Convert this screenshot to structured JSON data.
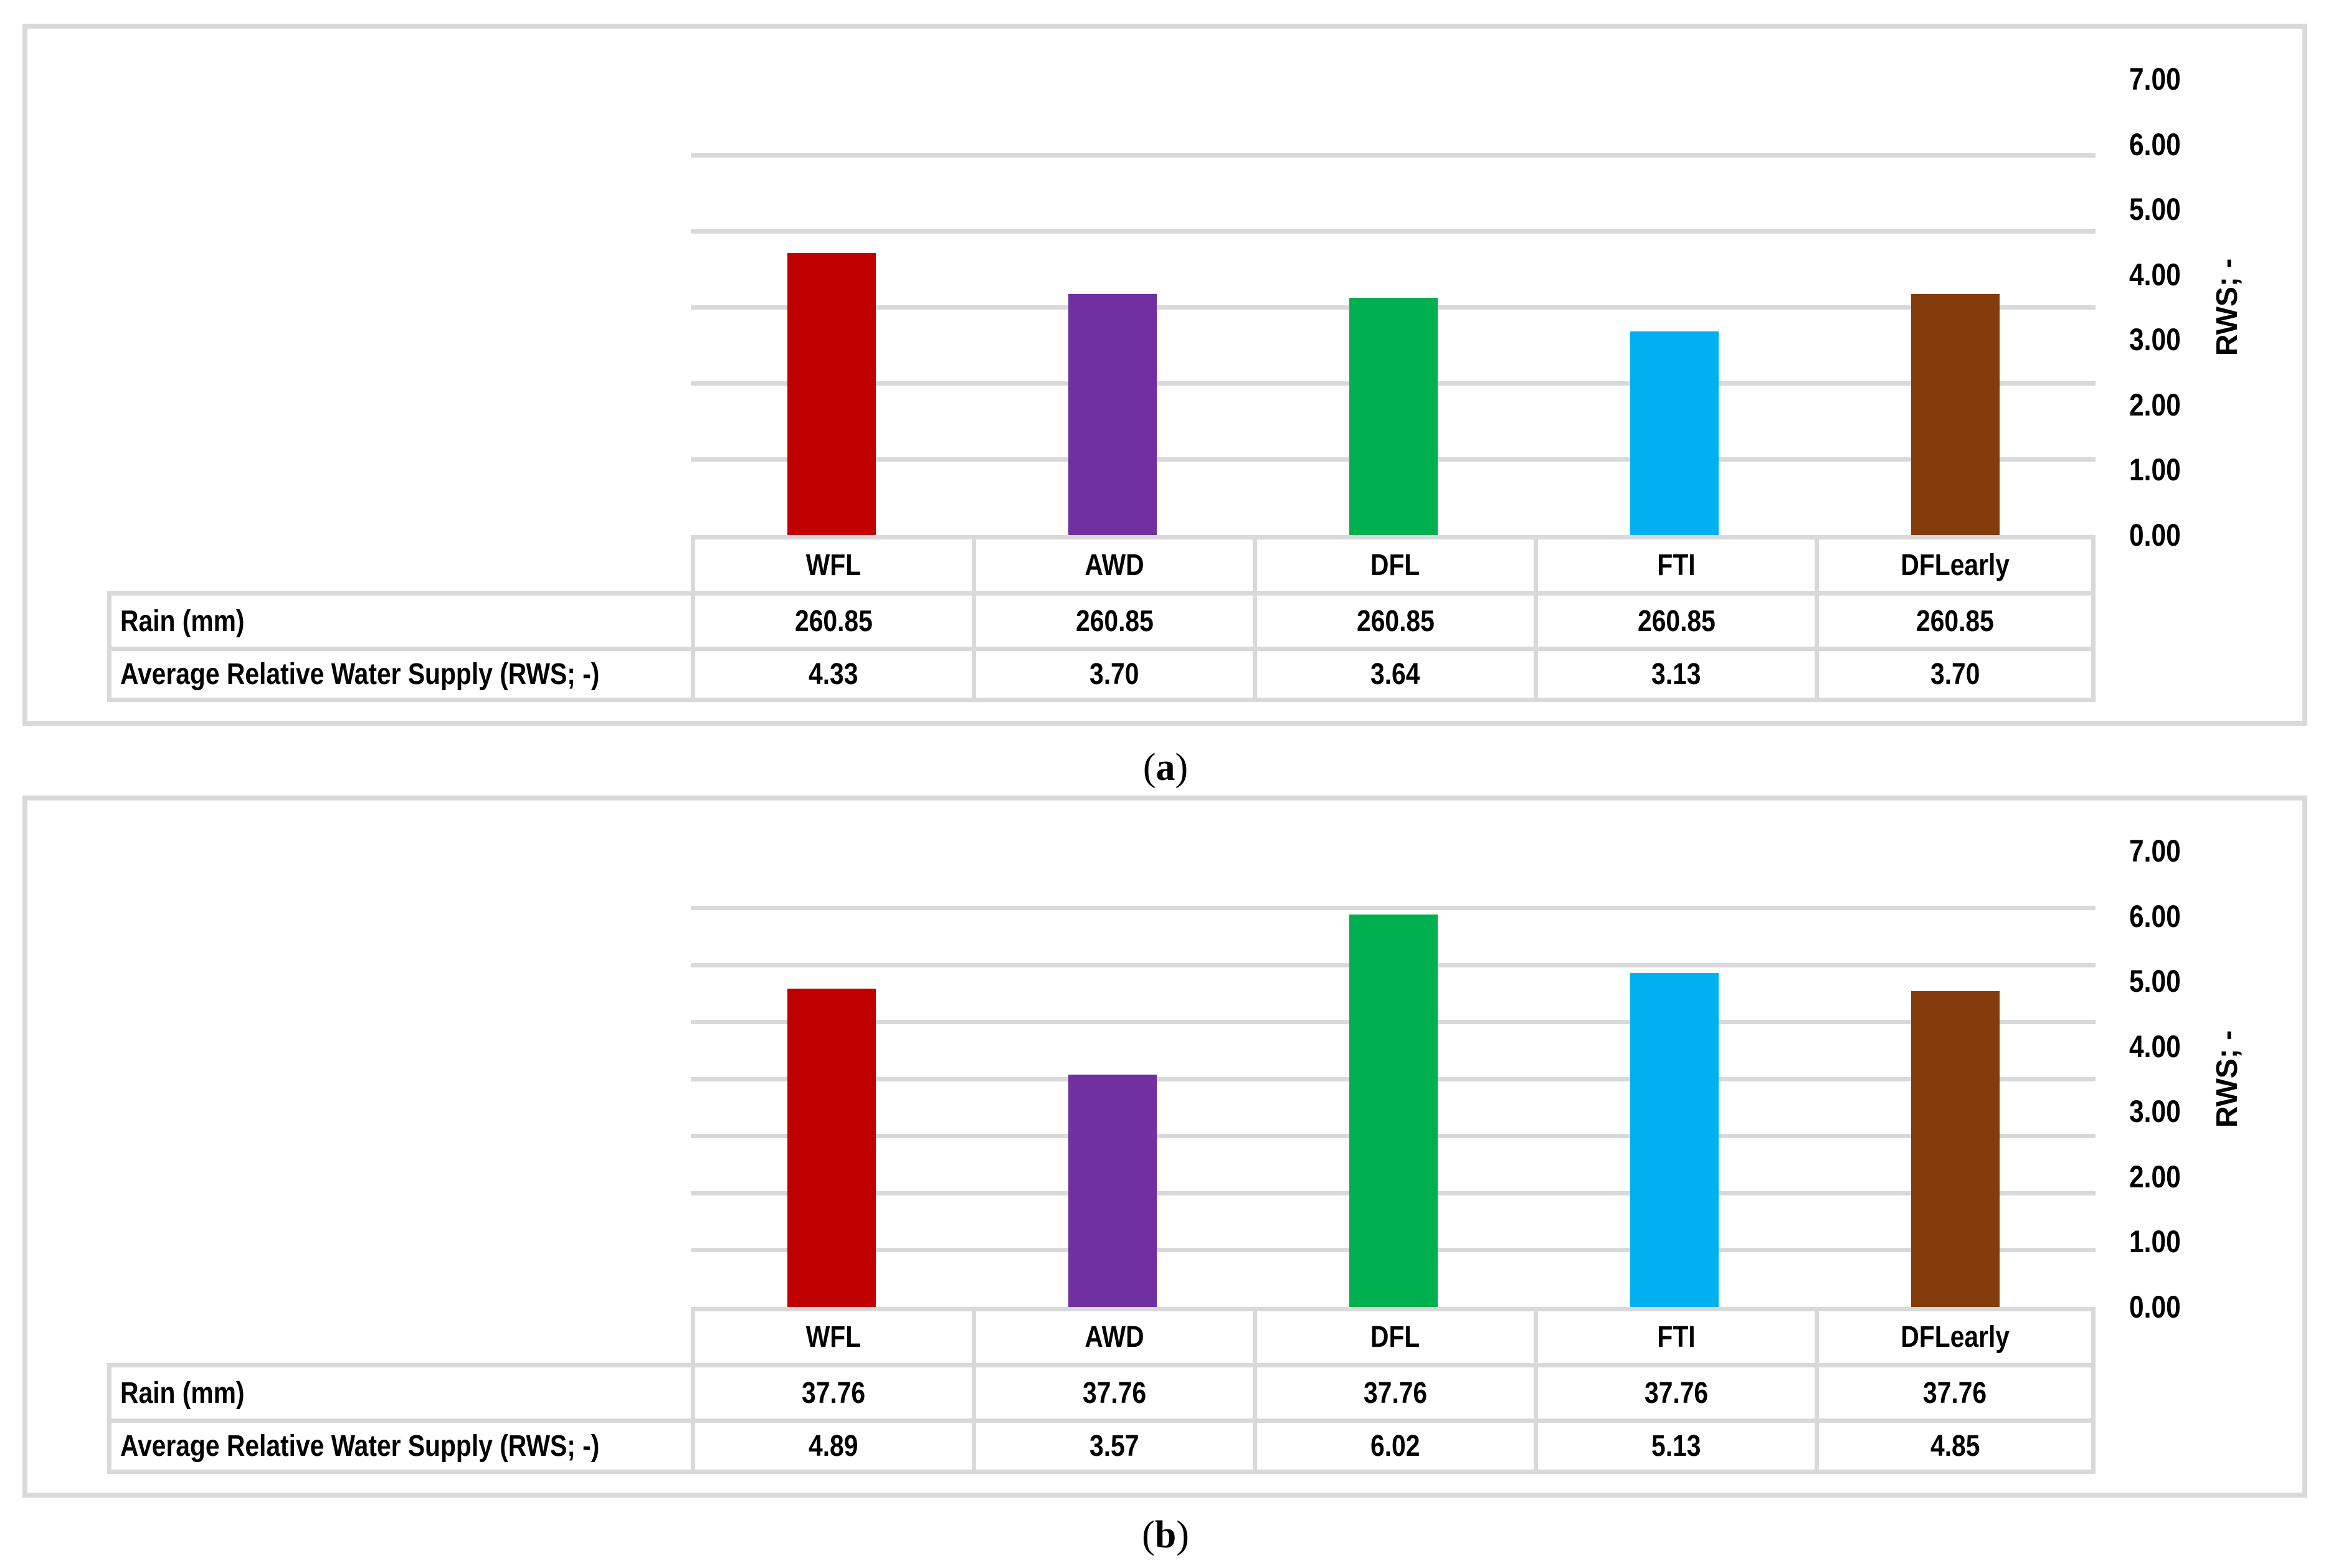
{
  "palette": {
    "background": "#FFFFFF",
    "grid": "#D9D9D9",
    "panel_border": "#D9D9D9",
    "table_border": "#D9D9D9",
    "text": "#000000"
  },
  "axis": {
    "title": "RWS; -",
    "tick_labels": [
      "0.00",
      "1.00",
      "2.00",
      "3.00",
      "4.00",
      "5.00",
      "6.00",
      "7.00"
    ],
    "min": 0,
    "max": 7
  },
  "chart_data": [
    {
      "id": "a",
      "type": "bar",
      "title": "",
      "categories": [
        "WFL",
        "AWD",
        "DFL",
        "FTI",
        "DFLearly"
      ],
      "bar_colors": [
        "#C00000",
        "#7030A0",
        "#00B050",
        "#00B0F0",
        "#843C0C"
      ],
      "values": [
        4.33,
        3.7,
        3.64,
        3.13,
        3.7
      ],
      "xlabel": "",
      "ylabel": "RWS; -",
      "ylim": [
        0,
        7
      ],
      "yticks": [
        0,
        1,
        2,
        3,
        4,
        5,
        6,
        7
      ],
      "grid": "on",
      "legend": "none",
      "gridline_divisions": 6,
      "table_rows": [
        {
          "label": "Rain (mm)",
          "values": [
            "260.85",
            "260.85",
            "260.85",
            "260.85",
            "260.85"
          ]
        },
        {
          "label": "Average Relative Water Supply (RWS; -)",
          "values": [
            "4.33",
            "3.70",
            "3.64",
            "3.13",
            "3.70"
          ]
        }
      ],
      "caption": {
        "open": "(",
        "letter": "a",
        "close": ")"
      }
    },
    {
      "id": "b",
      "type": "bar",
      "title": "",
      "categories": [
        "WFL",
        "AWD",
        "DFL",
        "FTI",
        "DFLearly"
      ],
      "bar_colors": [
        "#C00000",
        "#7030A0",
        "#00B050",
        "#00B0F0",
        "#843C0C"
      ],
      "values": [
        4.89,
        3.57,
        6.02,
        5.13,
        4.85
      ],
      "xlabel": "",
      "ylabel": "RWS; -",
      "ylim": [
        0,
        7
      ],
      "yticks": [
        0,
        1,
        2,
        3,
        4,
        5,
        6,
        7
      ],
      "grid": "on",
      "legend": "none",
      "gridline_divisions": 8,
      "table_rows": [
        {
          "label": "Rain (mm)",
          "values": [
            "37.76",
            "37.76",
            "37.76",
            "37.76",
            "37.76"
          ]
        },
        {
          "label": "Average Relative Water Supply (RWS; -)",
          "values": [
            "4.89",
            "3.57",
            "6.02",
            "5.13",
            "4.85"
          ]
        }
      ],
      "caption": {
        "open": "(",
        "letter": "b",
        "close": ")"
      }
    }
  ]
}
